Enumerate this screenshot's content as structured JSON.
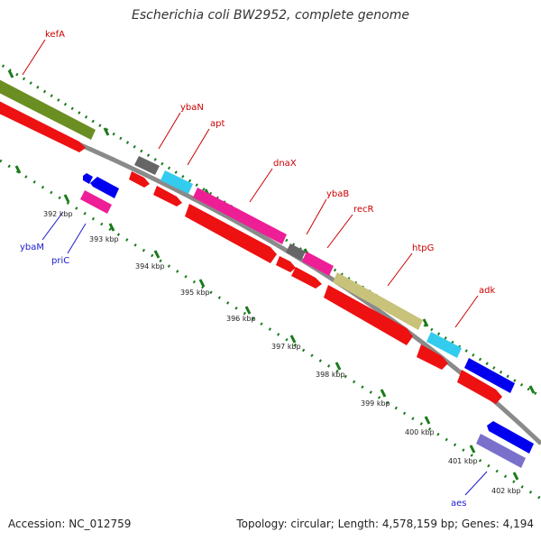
{
  "title": "Escherichia coli BW2952, complete genome",
  "footer": {
    "accession": "Accession: NC_012759",
    "summary": "Topology: circular; Length: 4,578,159 bp; Genes: 4,194"
  },
  "colors": {
    "backbone": "#8a8a8a",
    "tick": "#1a7a1a",
    "forward_label": "#cc0000",
    "reverse_label": "#1a1acc",
    "cds": "#ee1111",
    "olive": "#6b8e23",
    "khaki": "#c8c27a",
    "gray": "#666666",
    "cyan": "#33ccee",
    "magenta": "#ee1e96",
    "blue": "#0000ee",
    "purple": "#7a70cc"
  },
  "scale_labels": [
    "392 kbp",
    "393 kbp",
    "394 kbp",
    "395 kbp",
    "396 kbp",
    "397 kbp",
    "398 kbp",
    "399 kbp",
    "400 kbp",
    "401 kbp",
    "402 kbp"
  ],
  "forward_genes": [
    "kefA",
    "ybaN",
    "apt",
    "dnaX",
    "ybaB",
    "recR",
    "htpG",
    "adk"
  ],
  "reverse_genes": [
    "ybaM",
    "priC",
    "aes"
  ]
}
